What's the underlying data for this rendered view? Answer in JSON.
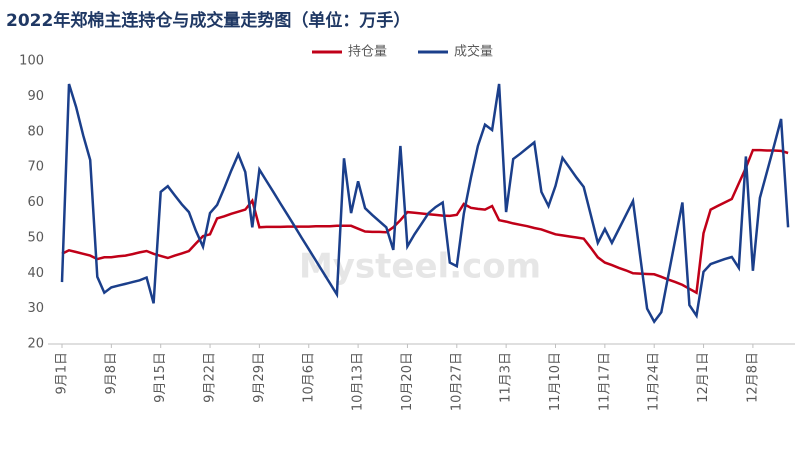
{
  "chart_data": {
    "type": "line",
    "title": "2022年郑棉主连持仓与成交量走势图（单位：万手）",
    "watermark": "Mysteel.com",
    "categories": [
      "9月1日",
      null,
      null,
      null,
      null,
      null,
      null,
      "9月8日",
      null,
      null,
      null,
      null,
      null,
      null,
      "9月15日",
      null,
      null,
      null,
      null,
      null,
      null,
      "9月22日",
      null,
      null,
      null,
      null,
      null,
      null,
      "9月29日",
      null,
      null,
      null,
      null,
      null,
      null,
      "10月6日",
      null,
      null,
      null,
      null,
      null,
      null,
      "10月13日",
      null,
      null,
      null,
      null,
      null,
      null,
      "10月20日",
      null,
      null,
      null,
      null,
      null,
      null,
      "10月27日",
      null,
      null,
      null,
      null,
      null,
      null,
      "11月3日",
      null,
      null,
      null,
      null,
      null,
      null,
      "11月10日",
      null,
      null,
      null,
      null,
      null,
      null,
      "11月17日",
      null,
      null,
      null,
      null,
      null,
      null,
      "11月24日",
      null,
      null,
      null,
      null,
      null,
      null,
      "12月1日",
      null,
      null,
      null,
      null,
      null,
      null,
      "12月8日",
      null,
      null,
      null,
      null,
      null
    ],
    "series": [
      {
        "name": "持仓量",
        "color": "#c00018",
        "values": [
          45.5,
          46.5,
          46,
          45.5,
          45,
          44,
          44.5,
          44.5,
          44.8,
          45,
          45.4,
          45.9,
          46.3,
          45.5,
          44.9,
          44.3,
          45,
          45.6,
          46.3,
          48.4,
          50.5,
          51,
          55.5,
          56.1,
          56.8,
          57.4,
          58,
          60.5,
          53,
          53.1,
          53.1,
          53.1,
          53.2,
          53.2,
          53.2,
          53.2,
          53.3,
          53.3,
          53.3,
          53.4,
          53.4,
          53.4,
          52.6,
          51.8,
          51.7,
          51.7,
          51.6,
          53,
          55,
          57.3,
          57.1,
          56.9,
          56.7,
          56.5,
          56.3,
          56.2,
          56.5,
          59.6,
          58.5,
          58.2,
          58,
          59,
          55,
          54.6,
          54.1,
          53.7,
          53.3,
          52.8,
          52.4,
          51.7,
          51,
          50.7,
          50.4,
          50.1,
          49.8,
          47.2,
          44.5,
          43,
          42.3,
          41.5,
          40.8,
          40,
          39.9,
          39.8,
          39.7,
          39,
          38.2,
          37.5,
          36.7,
          35.6,
          34.5,
          51.3,
          58,
          59,
          60,
          61,
          65.4,
          69.8,
          74.8,
          74.8,
          74.7,
          74.7,
          74.6,
          74
        ]
      },
      {
        "name": "成交量",
        "color": "#1b3f8b",
        "values": [
          37.5,
          93.5,
          87,
          79,
          72,
          39,
          34.5,
          36,
          36.5,
          37,
          37.5,
          38,
          38.8,
          31.5,
          63,
          64.6,
          62,
          59.5,
          57.3,
          52,
          47.5,
          57,
          59.3,
          64,
          69,
          73.6,
          68.6,
          53,
          69.3,
          66.1,
          62.9,
          59.7,
          56.5,
          53.3,
          50,
          46.8,
          43.6,
          40.4,
          37.2,
          34,
          72.5,
          57,
          66,
          58.4,
          56.5,
          54.7,
          53,
          46.6,
          76,
          47.6,
          51,
          54,
          57,
          58.7,
          60,
          43,
          42,
          56.8,
          67,
          76,
          82,
          80.5,
          93.5,
          57.3,
          72.3,
          73.8,
          75.4,
          77,
          63,
          59,
          64.7,
          72.6,
          69.8,
          67,
          64.4,
          56.5,
          48.6,
          52.5,
          48.6,
          52.5,
          56.5,
          60.4,
          45,
          30,
          26.3,
          29,
          39.3,
          49.7,
          60,
          31,
          28,
          40.4,
          42.6,
          43.3,
          44,
          44.6,
          41.5,
          73,
          40.7,
          61.3,
          68.7,
          76,
          83.6,
          53
        ]
      }
    ],
    "ylim": [
      20,
      100
    ],
    "yticks": [
      20,
      30,
      40,
      50,
      60,
      70,
      80,
      90,
      100
    ],
    "grid": false,
    "legend": "top"
  }
}
